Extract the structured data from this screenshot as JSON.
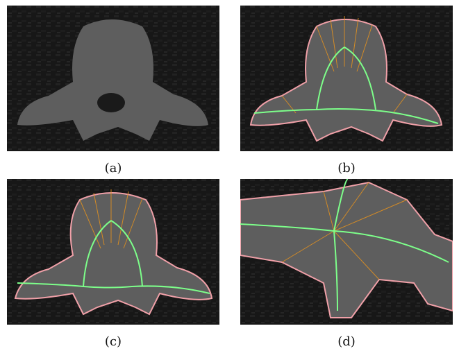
{
  "figure": {
    "panels": [
      {
        "id": "a",
        "caption": "(a)"
      },
      {
        "id": "b",
        "caption": "(b)"
      },
      {
        "id": "c",
        "caption": "(c)"
      },
      {
        "id": "d",
        "caption": "(d)"
      }
    ]
  },
  "colors": {
    "background": "#161616",
    "bone": "#6e6e6e",
    "contour": "#f0a0a8",
    "skeleton": "#7dff8a",
    "spokes": "#e09020",
    "markers": "#c8e8ff"
  }
}
